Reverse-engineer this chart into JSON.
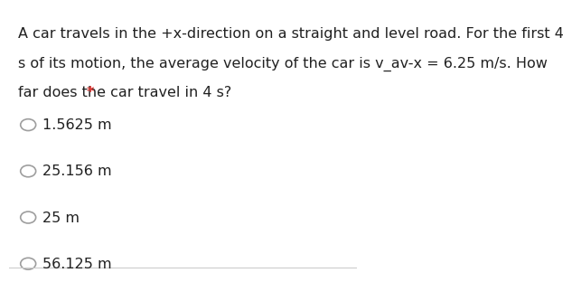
{
  "background_color": "#ffffff",
  "question_lines": [
    "A car travels in the +x-direction on a straight and level road. For the first 4",
    "s of its motion, the average velocity of the car is v_av-x = 6.25 m/s. How",
    "far does the car travel in 4 s?"
  ],
  "asterisk": "*",
  "question_text_color": "#212121",
  "asterisk_color": "#e53935",
  "options": [
    "1.5625 m",
    "25.156 m",
    "25 m",
    "56.125 m"
  ],
  "option_text_color": "#212121",
  "circle_color": "#9e9e9e",
  "font_size_question": 11.5,
  "font_size_options": 11.5,
  "bottom_line_color": "#cccccc",
  "fig_width": 5.68,
  "fig_height": 3.01
}
